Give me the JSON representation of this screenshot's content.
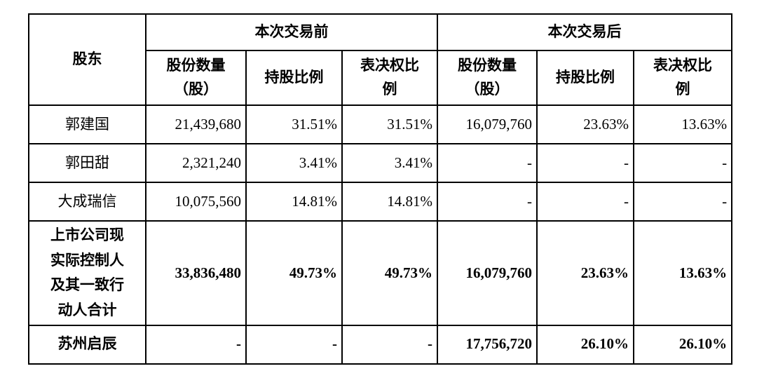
{
  "table": {
    "shareholder_header": "股东",
    "group_headers": {
      "before": "本次交易前",
      "after": "本次交易后"
    },
    "sub_headers": {
      "shares": "股份数量\n（股）",
      "holding_ratio": "持股比例",
      "voting_ratio": "表决权比\n例"
    },
    "rows": [
      {
        "name": "郭建国",
        "before": {
          "shares": "21,439,680",
          "holding": "31.51%",
          "voting": "31.51%"
        },
        "after": {
          "shares": "16,079,760",
          "holding": "23.63%",
          "voting": "13.63%"
        }
      },
      {
        "name": "郭田甜",
        "before": {
          "shares": "2,321,240",
          "holding": "3.41%",
          "voting": "3.41%"
        },
        "after": {
          "shares": "-",
          "holding": "-",
          "voting": "-"
        }
      },
      {
        "name": "大成瑞信",
        "before": {
          "shares": "10,075,560",
          "holding": "14.81%",
          "voting": "14.81%"
        },
        "after": {
          "shares": "-",
          "holding": "-",
          "voting": "-"
        }
      },
      {
        "name": "上市公司现\n实际控制人\n及其一致行\n动人合计",
        "before": {
          "shares": "33,836,480",
          "holding": "49.73%",
          "voting": "49.73%"
        },
        "after": {
          "shares": "16,079,760",
          "holding": "23.63%",
          "voting": "13.63%"
        }
      },
      {
        "name": "苏州启辰",
        "before": {
          "shares": "-",
          "holding": "-",
          "voting": "-"
        },
        "after": {
          "shares": "17,756,720",
          "holding": "26.10%",
          "voting": "26.10%"
        }
      }
    ],
    "colors": {
      "text": "#000000",
      "border": "#000000",
      "background": "#ffffff"
    }
  }
}
